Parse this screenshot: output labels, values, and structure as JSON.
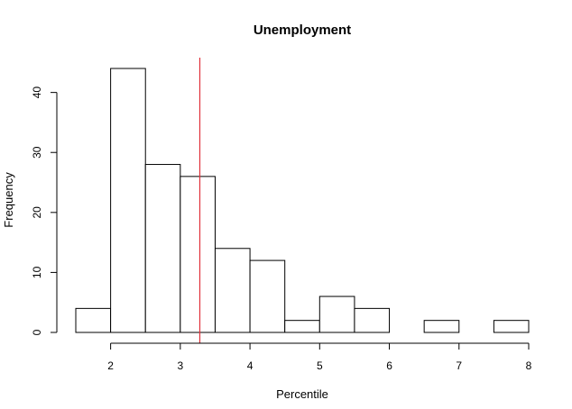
{
  "chart_data": {
    "type": "histogram",
    "title": "Unemployment",
    "xlabel": "Percentile",
    "ylabel": "Frequency",
    "bins": [
      {
        "start": 1.5,
        "end": 2.0,
        "count": 4
      },
      {
        "start": 2.0,
        "end": 2.5,
        "count": 44
      },
      {
        "start": 2.5,
        "end": 3.0,
        "count": 28
      },
      {
        "start": 3.0,
        "end": 3.5,
        "count": 26
      },
      {
        "start": 3.5,
        "end": 4.0,
        "count": 14
      },
      {
        "start": 4.0,
        "end": 4.5,
        "count": 12
      },
      {
        "start": 4.5,
        "end": 5.0,
        "count": 2
      },
      {
        "start": 5.0,
        "end": 5.5,
        "count": 6
      },
      {
        "start": 5.5,
        "end": 6.0,
        "count": 4
      },
      {
        "start": 6.0,
        "end": 6.5,
        "count": 0
      },
      {
        "start": 6.5,
        "end": 7.0,
        "count": 2
      },
      {
        "start": 7.0,
        "end": 7.5,
        "count": 0
      },
      {
        "start": 7.5,
        "end": 8.0,
        "count": 2
      }
    ],
    "x_ticks": [
      2,
      3,
      4,
      5,
      6,
      7,
      8
    ],
    "y_ticks": [
      0,
      10,
      20,
      30,
      40
    ],
    "vline": {
      "x": 3.28,
      "color": "#e0313a"
    },
    "xlim": [
      1.5,
      8.0
    ],
    "ylim": [
      0,
      44
    ],
    "grid": false,
    "legend": "none"
  }
}
